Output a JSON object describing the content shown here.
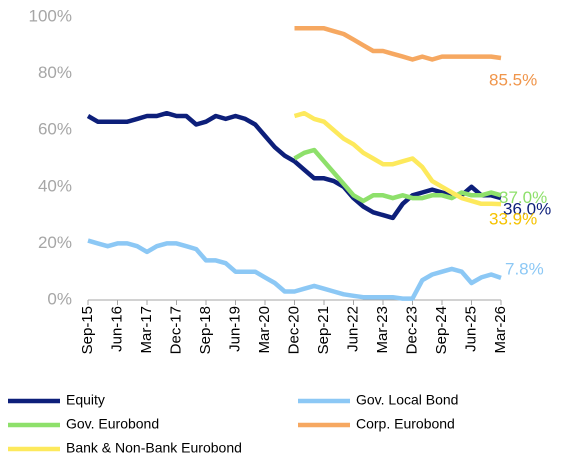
{
  "chart_data": {
    "type": "line",
    "categories": [
      "Sep-15",
      null,
      null,
      "Jun-16",
      null,
      null,
      "Mar-17",
      null,
      null,
      "Dec-17",
      null,
      null,
      "Sep-18",
      null,
      null,
      "Jun-19",
      null,
      null,
      "Mar-20",
      null,
      null,
      "Dec-20",
      null,
      null,
      "Sep-21",
      null,
      null,
      "Jun-22",
      null,
      null,
      "Mar-23",
      null,
      null,
      "Dec-23",
      null,
      null,
      "Sep-24",
      null,
      null,
      "Jun-25",
      null,
      null,
      "Mar-26"
    ],
    "ylim": [
      0,
      100
    ],
    "yticks": [
      {
        "value": 0,
        "label": "0%"
      },
      {
        "value": 20,
        "label": "20%"
      },
      {
        "value": 40,
        "label": "40%"
      },
      {
        "value": 60,
        "label": "60%"
      },
      {
        "value": 80,
        "label": "80%"
      },
      {
        "value": 100,
        "label": "100%"
      }
    ],
    "grid": false,
    "legend": "bottom",
    "series": [
      {
        "name": "Equity",
        "color": "#0d1f7a",
        "values": [
          65,
          63,
          63,
          63,
          63,
          64,
          65,
          65,
          66,
          65,
          65,
          62,
          63,
          65,
          64,
          65,
          64,
          62,
          58,
          54,
          51,
          49,
          46,
          43,
          43,
          42,
          40,
          36,
          33,
          31,
          30,
          29,
          34,
          37,
          38,
          39,
          38,
          37,
          37,
          40,
          37,
          37,
          36.0
        ],
        "value_labels": [
          null,
          null,
          null,
          null,
          null,
          null,
          null,
          null,
          null,
          null,
          null,
          null,
          null,
          null,
          null,
          null,
          null,
          null,
          null,
          null,
          null,
          null,
          null,
          null,
          null,
          null,
          null,
          null,
          null,
          null,
          null,
          null,
          null,
          null,
          null,
          null,
          null,
          null,
          null,
          null,
          null,
          null,
          "36.0%"
        ],
        "label_color": "#0d1f7a"
      },
      {
        "name": "Gov. Local Bond",
        "color": "#8cc8f5",
        "values": [
          21,
          20,
          19,
          20,
          20,
          19,
          17,
          19,
          20,
          20,
          19,
          18,
          14,
          14,
          13,
          10,
          10,
          10,
          8,
          6,
          3,
          3,
          4,
          5,
          4,
          3,
          2,
          1.5,
          1,
          1,
          1,
          1,
          0.5,
          0.5,
          7,
          9,
          10,
          11,
          10,
          6,
          8,
          9,
          7.8
        ],
        "value_labels": [
          null,
          null,
          null,
          null,
          null,
          null,
          null,
          null,
          null,
          null,
          null,
          null,
          null,
          null,
          null,
          null,
          null,
          null,
          null,
          null,
          null,
          null,
          null,
          null,
          null,
          null,
          null,
          null,
          null,
          null,
          null,
          null,
          null,
          null,
          null,
          null,
          null,
          null,
          null,
          null,
          null,
          null,
          "7.8%"
        ],
        "label_color": "#8cc8f5"
      },
      {
        "name": "Gov. Eurobond",
        "color": "#8ee06b",
        "values": [
          null,
          null,
          null,
          null,
          null,
          null,
          null,
          null,
          null,
          null,
          null,
          null,
          null,
          null,
          null,
          null,
          null,
          null,
          null,
          null,
          null,
          50,
          52,
          53,
          49,
          45,
          41,
          37,
          35,
          37,
          37,
          36,
          37,
          36,
          36,
          37,
          37,
          36,
          38,
          37,
          37,
          38,
          37.0
        ],
        "value_labels": [
          null,
          null,
          null,
          null,
          null,
          null,
          null,
          null,
          null,
          null,
          null,
          null,
          null,
          null,
          null,
          null,
          null,
          null,
          null,
          null,
          null,
          null,
          null,
          null,
          null,
          null,
          null,
          null,
          null,
          null,
          null,
          null,
          null,
          null,
          null,
          null,
          null,
          null,
          null,
          null,
          null,
          null,
          "37.0%"
        ],
        "label_color": "#8ee06b"
      },
      {
        "name": "Corp. Eurobond",
        "color": "#f6a861",
        "values": [
          null,
          null,
          null,
          null,
          null,
          null,
          null,
          null,
          null,
          null,
          null,
          null,
          null,
          null,
          null,
          null,
          null,
          null,
          null,
          null,
          null,
          96,
          96,
          96,
          96,
          95,
          94,
          92,
          90,
          88,
          88,
          87,
          86,
          85,
          86,
          85,
          86,
          86,
          86,
          86,
          86,
          86,
          85.5
        ],
        "value_labels": [
          null,
          null,
          null,
          null,
          null,
          null,
          null,
          null,
          null,
          null,
          null,
          null,
          null,
          null,
          null,
          null,
          null,
          null,
          null,
          null,
          null,
          null,
          null,
          null,
          null,
          null,
          null,
          null,
          null,
          null,
          null,
          null,
          null,
          null,
          null,
          null,
          null,
          null,
          null,
          null,
          null,
          null,
          "85.5%"
        ],
        "label_color": "#f0954a"
      },
      {
        "name": "Bank & Non-Bank Eurobond",
        "color": "#fde95c",
        "values": [
          null,
          null,
          null,
          null,
          null,
          null,
          null,
          null,
          null,
          null,
          null,
          null,
          null,
          null,
          null,
          null,
          null,
          null,
          null,
          null,
          null,
          65,
          66,
          64,
          63,
          60,
          57,
          55,
          52,
          50,
          48,
          48,
          49,
          50,
          47,
          42,
          40,
          38,
          36,
          35,
          34,
          34,
          33.9
        ],
        "value_labels": [
          null,
          null,
          null,
          null,
          null,
          null,
          null,
          null,
          null,
          null,
          null,
          null,
          null,
          null,
          null,
          null,
          null,
          null,
          null,
          null,
          null,
          null,
          null,
          null,
          null,
          null,
          null,
          null,
          null,
          null,
          null,
          null,
          null,
          null,
          null,
          null,
          null,
          null,
          null,
          null,
          null,
          null,
          "33.9%"
        ],
        "label_color": "#f5c200"
      }
    ]
  }
}
